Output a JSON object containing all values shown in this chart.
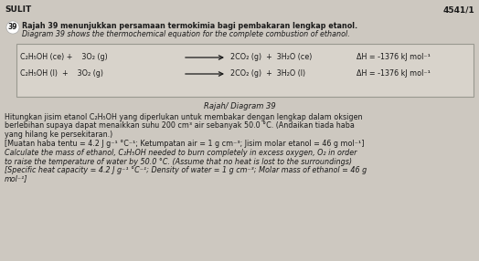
{
  "bg_color": "#cdc8c0",
  "box_bg": "#d8d3cb",
  "box_edge": "#999990",
  "header_left": "SULIT",
  "header_right": "4541/1",
  "question_number": "39",
  "intro_malay": "Rajah 39 menunjukkan persamaan termokimia bagi pembakaran lengkap etanol.",
  "intro_english": "Diagram 39 shows the thermochemical equation for the complete combustion of ethanol.",
  "eq1_left": "C₂H₅OH (ce) +",
  "eq1_mid": "3O₂ (g)",
  "eq1_right": "2CO₂ (g)  +  3H₂O (ce)",
  "eq1_dH": "ΔH = -1376 kJ mol⁻¹",
  "eq2_left": "C₂H₅OH (l)  +",
  "eq2_mid": "3O₂ (g)",
  "eq2_right": "2CO₂ (g)  +  3H₂O (l)",
  "eq2_dH": "ΔH = -1376 kJ mol⁻¹",
  "diagram_label": "Rajah/ Diagram 39",
  "body_malay_1": "Hitungkan jisim etanol C₂H₅OH yang diperlukan untuk membakar dengan lengkap dalam oksigen",
  "body_malay_2": "berlebihan supaya dapat menaikkan suhu 200 cm³ air sebanyak 50.0 °C. (Andaikan tiada haba",
  "body_malay_3": "yang hilang ke persekitaran.)",
  "body_malay_4": "[Muatan haba tentu = 4.2 J g⁻¹ °C⁻¹; Ketumpatan air = 1 g cm⁻³; Jisim molar etanol = 46 g mol⁻¹]",
  "body_eng_1": "Calculate the mass of ethanol, C₂H₅OH needed to burn completely in excess oxygen, O₂ in order",
  "body_eng_2": "to raise the temperature of water by 50.0 °C. (Assume that no heat is lost to the surroundings)",
  "body_eng_3": "[Specific heat capacity = 4.2 J g⁻¹ °C⁻¹; Density of water = 1 g cm⁻³; Molar mass of ethanol = 46 g",
  "body_eng_4": "mol⁻¹]",
  "text_color": "#1a1a1a"
}
